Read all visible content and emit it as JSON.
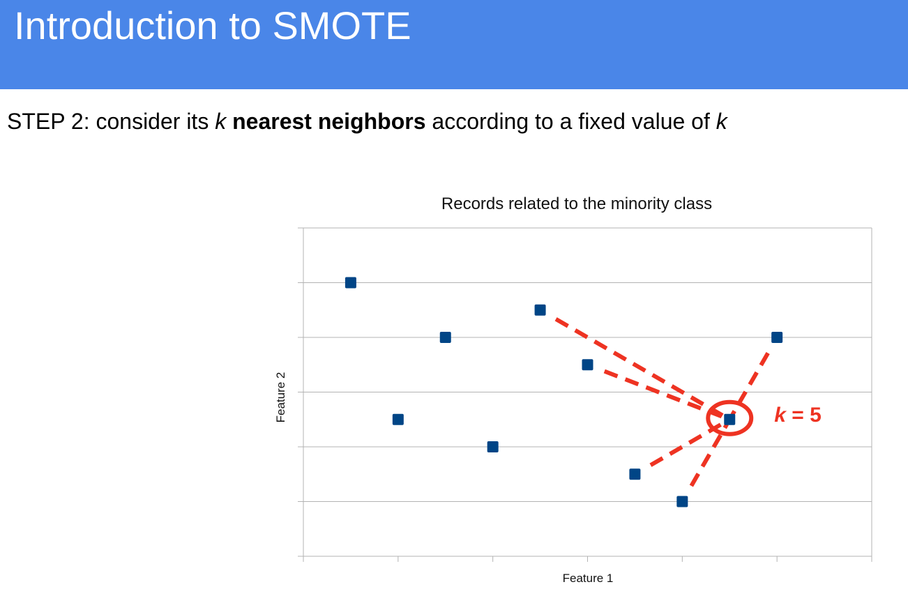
{
  "slide": {
    "title": "Introduction to SMOTE",
    "step": {
      "prefix": "STEP 2: consider its ",
      "k1": "k",
      "space": " ",
      "bold": "nearest neighbors",
      "rest": " according to a fixed value of ",
      "k2": "k"
    }
  },
  "colors": {
    "header": "#4a86e8",
    "marker": "#004586",
    "highlight": "#ee3322"
  },
  "chart_data": {
    "type": "scatter",
    "title": "Records related to the minority class",
    "xlabel": "Feature 1",
    "ylabel": "Feature 2",
    "xlim": [
      0,
      12
    ],
    "ylim": [
      0,
      12
    ],
    "x_ticks": [
      0,
      2,
      4,
      6,
      8,
      10,
      12
    ],
    "y_ticks": [
      0,
      2,
      4,
      6,
      8,
      10,
      12
    ],
    "tick_labels_shown": false,
    "grid": "horizontal",
    "series": [
      {
        "points": [
          {
            "x": 1,
            "y": 10
          },
          {
            "x": 2,
            "y": 5
          },
          {
            "x": 3,
            "y": 8
          },
          {
            "x": 4,
            "y": 4
          },
          {
            "x": 5,
            "y": 9
          },
          {
            "x": 6,
            "y": 7
          },
          {
            "x": 7,
            "y": 3
          },
          {
            "x": 8,
            "y": 2
          },
          {
            "x": 9,
            "y": 5
          },
          {
            "x": 10,
            "y": 8
          }
        ]
      }
    ],
    "highlight": {
      "center": {
        "x": 9,
        "y": 5
      },
      "neighbors": [
        {
          "x": 5,
          "y": 9
        },
        {
          "x": 6,
          "y": 7
        },
        {
          "x": 10,
          "y": 8
        },
        {
          "x": 7,
          "y": 3
        },
        {
          "x": 8,
          "y": 2
        }
      ],
      "label": "k = 5",
      "label_k": "k",
      "label_rest": " = 5"
    }
  }
}
